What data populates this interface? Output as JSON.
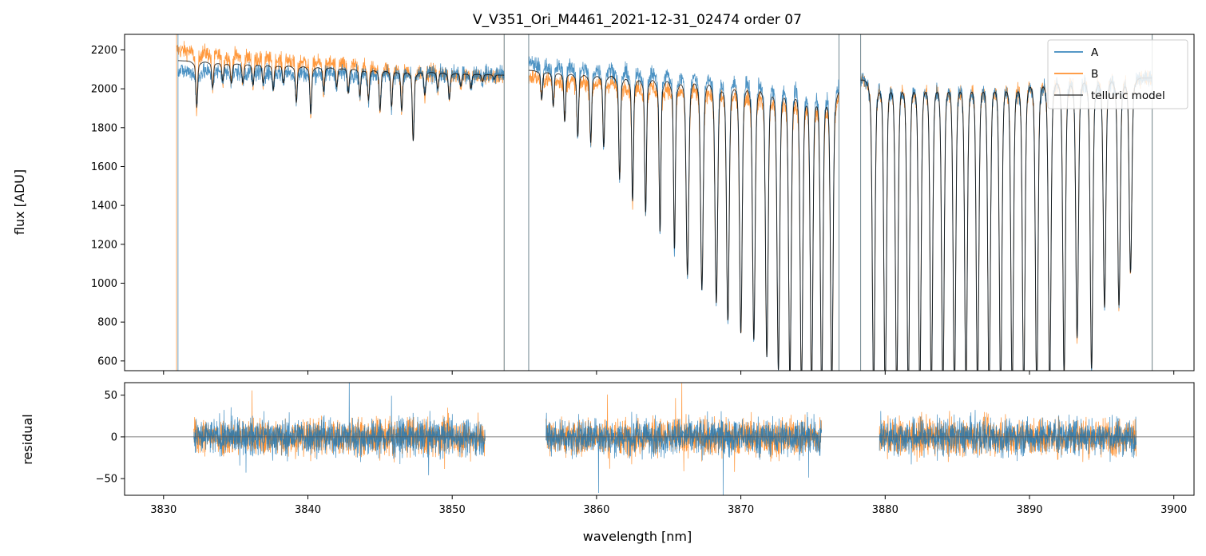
{
  "chart_data": [
    {
      "type": "line",
      "panel": "spectrum",
      "title": "V_V351_Ori_M4461_2021-12-31_02474  order 07",
      "xlabel": "",
      "ylabel": "flux [ADU]",
      "xlim": [
        3827.3,
        3901.4
      ],
      "ylim": [
        550,
        2280
      ],
      "yticks": [
        600,
        800,
        1000,
        1200,
        1400,
        1600,
        1800,
        2000,
        2200
      ],
      "ytick_labels": [
        "600",
        "800",
        "1000",
        "1200",
        "1400",
        "1600",
        "1800",
        "2000",
        "2200"
      ],
      "xticks": [
        3830,
        3840,
        3850,
        3860,
        3870,
        3880,
        3890,
        3900
      ],
      "legend_position": "top-right",
      "series": [
        {
          "name": "A",
          "color": "#1f77b4",
          "continuum_segments": [
            {
              "x0": 3831.0,
              "x1": 3853.6,
              "y0": 2090,
              "y1": 2080
            },
            {
              "x0": 3855.3,
              "x1": 3876.8,
              "y0": 2130,
              "y1": 2030
            },
            {
              "x0": 3878.3,
              "x1": 3898.5,
              "y0": 2050,
              "y1": 2050
            }
          ]
        },
        {
          "name": "B",
          "color": "#ff7f0e",
          "continuum_segments": [
            {
              "x0": 3830.9,
              "x1": 3853.6,
              "y0": 2200,
              "y1": 2060
            },
            {
              "x0": 3855.3,
              "x1": 3876.8,
              "y0": 2060,
              "y1": 1960
            },
            {
              "x0": 3878.3,
              "x1": 3898.5,
              "y0": 2040,
              "y1": 2060
            }
          ]
        },
        {
          "name": "telluric model",
          "color": "#000000"
        }
      ],
      "absorption_lines": {
        "x": [
          3832.3,
          3833.4,
          3834.1,
          3834.7,
          3835.5,
          3836.2,
          3836.9,
          3837.6,
          3838.3,
          3839.2,
          3840.2,
          3841.1,
          3842.0,
          3842.8,
          3843.6,
          3844.2,
          3845.0,
          3845.8,
          3846.5,
          3847.3,
          3848.1,
          3849.0,
          3849.8,
          3850.6,
          3851.3,
          3852.1,
          3852.9,
          3856.2,
          3857.0,
          3857.8,
          3858.7,
          3859.6,
          3860.5,
          3861.6,
          3862.5,
          3863.4,
          3864.4,
          3865.4,
          3866.3,
          3867.3,
          3868.3,
          3869.1,
          3870.0,
          3870.9,
          3871.8,
          3872.6,
          3873.4,
          3874.2,
          3874.9,
          3875.6,
          3876.3,
          3879.2,
          3880.0,
          3880.8,
          3881.6,
          3882.4,
          3883.2,
          3884.0,
          3884.8,
          3885.6,
          3886.4,
          3887.2,
          3888.0,
          3888.8,
          3889.6,
          3890.5,
          3891.4,
          3892.4,
          3893.3,
          3894.3,
          3895.2,
          3896.2,
          3897.0
        ],
        "depth_flux": [
          1870,
          1960,
          1990,
          1980,
          1980,
          1970,
          1980,
          1950,
          1980,
          1890,
          1840,
          1940,
          1960,
          1930,
          1920,
          1900,
          1850,
          1870,
          1850,
          1710,
          1920,
          1950,
          1900,
          1960,
          1950,
          1980,
          1990,
          1900,
          1870,
          1800,
          1730,
          1700,
          1680,
          1530,
          1430,
          1380,
          1290,
          1210,
          1090,
          1020,
          960,
          880,
          820,
          790,
          710,
          650,
          600,
          560,
          550,
          550,
          560,
          550,
          550,
          550,
          550,
          550,
          550,
          550,
          550,
          550,
          550,
          550,
          550,
          550,
          550,
          550,
          570,
          630,
          800,
          660,
          940,
          950,
          1100
        ]
      },
      "gaps": [
        [
          3853.6,
          3855.3
        ],
        [
          3876.8,
          3878.3
        ]
      ]
    },
    {
      "type": "line",
      "panel": "residual",
      "xlabel": "wavelength [nm]",
      "ylabel": "residual",
      "xlim": [
        3827.3,
        3901.4
      ],
      "ylim": [
        -70,
        65
      ],
      "yticks": [
        -50,
        0,
        50
      ],
      "ytick_labels": [
        "−50",
        "0",
        "50"
      ],
      "xticks": [
        3830,
        3840,
        3850,
        3860,
        3870,
        3880,
        3890,
        3900
      ],
      "xtick_labels": [
        "3830",
        "3840",
        "3850",
        "3860",
        "3870",
        "3880",
        "3890",
        "3900"
      ],
      "segments": [
        [
          3832.1,
          3852.3
        ],
        [
          3856.5,
          3875.6
        ],
        [
          3879.6,
          3897.4
        ]
      ],
      "noise_sigma": 20,
      "series": [
        {
          "name": "A",
          "color": "#1f77b4"
        },
        {
          "name": "B",
          "color": "#ff7f0e"
        }
      ],
      "zero_line": 0
    }
  ]
}
